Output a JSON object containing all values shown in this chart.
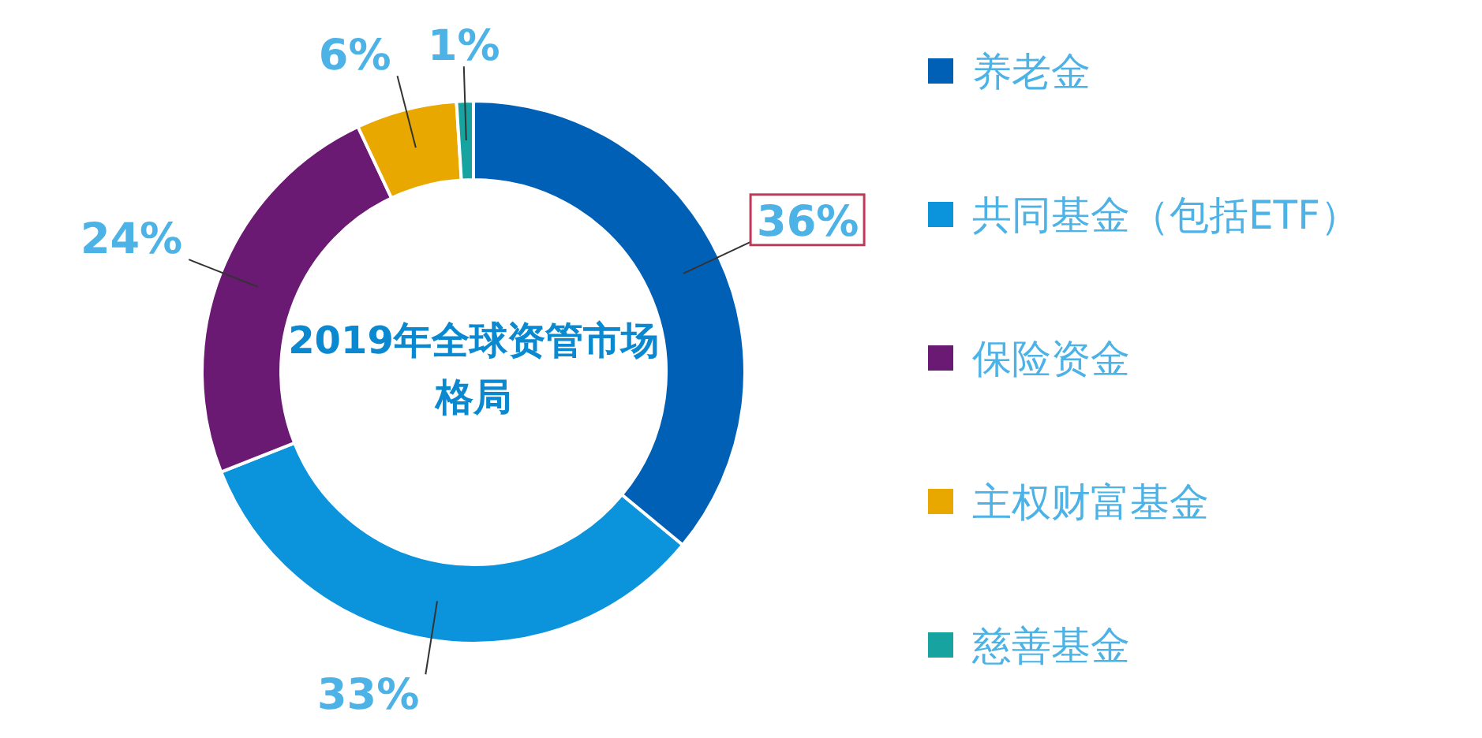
{
  "chart_data": {
    "type": "donut",
    "title": "2019年全球资管市场格局",
    "categories": [
      "养老金",
      "共同基金（包括ETF）",
      "保险资金",
      "主权财富基金",
      "慈善基金"
    ],
    "values": [
      36,
      33,
      24,
      6,
      1
    ],
    "colors": [
      "#0060b6",
      "#0b93dc",
      "#6b1a74",
      "#e8a800",
      "#17a4a0"
    ],
    "value_labels": [
      "36%",
      "33%",
      "24%",
      "6%",
      "1%"
    ],
    "legend": "right"
  }
}
